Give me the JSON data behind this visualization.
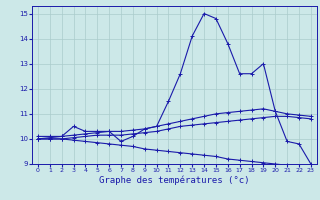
{
  "title": "Graphe des températures (°c)",
  "bg_color": "#cce8e8",
  "line_color": "#1a1aaa",
  "grid_color": "#aacccc",
  "x_values": [
    0,
    1,
    2,
    3,
    4,
    5,
    6,
    7,
    8,
    9,
    10,
    11,
    12,
    13,
    14,
    15,
    16,
    17,
    18,
    19,
    20,
    21,
    22,
    23
  ],
  "temp_series": [
    [
      10.1,
      10.1,
      10.1,
      10.5,
      10.3,
      10.3,
      10.3,
      9.9,
      10.1,
      10.4,
      10.5,
      11.5,
      12.6,
      14.1,
      15.0,
      14.8,
      13.8,
      12.6,
      12.6,
      13.0,
      11.1,
      9.9,
      9.8,
      9.0
    ],
    [
      10.0,
      10.05,
      10.1,
      10.15,
      10.2,
      10.25,
      10.3,
      10.3,
      10.35,
      10.4,
      10.5,
      10.6,
      10.7,
      10.8,
      10.9,
      11.0,
      11.05,
      11.1,
      11.15,
      11.2,
      11.1,
      11.0,
      10.95,
      10.9
    ],
    [
      10.0,
      10.0,
      10.0,
      10.05,
      10.1,
      10.15,
      10.15,
      10.15,
      10.2,
      10.25,
      10.3,
      10.4,
      10.5,
      10.55,
      10.6,
      10.65,
      10.7,
      10.75,
      10.8,
      10.85,
      10.9,
      10.9,
      10.85,
      10.8
    ],
    [
      10.0,
      10.0,
      10.0,
      9.95,
      9.9,
      9.85,
      9.8,
      9.75,
      9.7,
      9.6,
      9.55,
      9.5,
      9.45,
      9.4,
      9.35,
      9.3,
      9.2,
      9.15,
      9.1,
      9.05,
      9.0,
      8.95,
      8.9,
      8.85
    ]
  ],
  "ylim": [
    9.0,
    15.3
  ],
  "xlim": [
    -0.5,
    23.5
  ],
  "yticks": [
    9,
    10,
    11,
    12,
    13,
    14,
    15
  ],
  "xticks": [
    0,
    1,
    2,
    3,
    4,
    5,
    6,
    7,
    8,
    9,
    10,
    11,
    12,
    13,
    14,
    15,
    16,
    17,
    18,
    19,
    20,
    21,
    22,
    23
  ]
}
